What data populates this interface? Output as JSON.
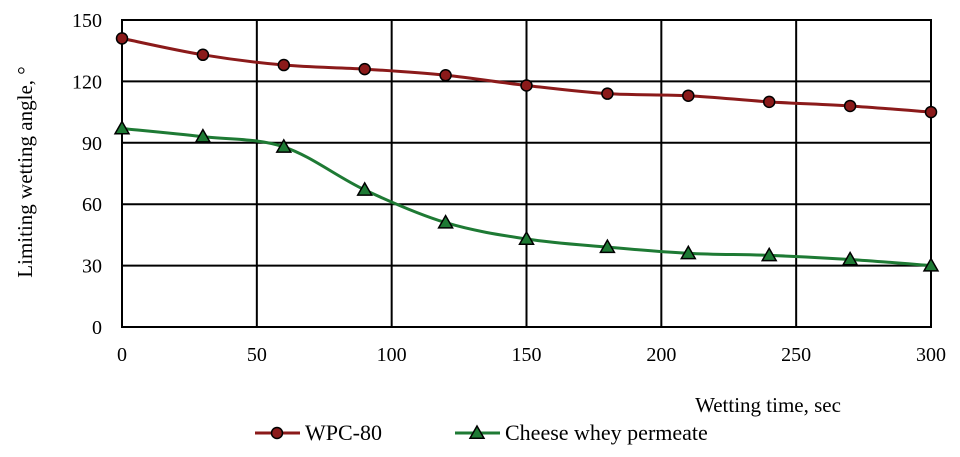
{
  "chart_data": {
    "type": "line",
    "title": "",
    "xlabel": "Wetting time, sec",
    "ylabel": "Limiting wetting angle, °",
    "xlim": [
      0,
      300
    ],
    "ylim": [
      0,
      150
    ],
    "x_ticks": [
      "0",
      "50",
      "100",
      "150",
      "200",
      "250",
      "300"
    ],
    "y_ticks": [
      "0",
      "30",
      "60",
      "90",
      "120",
      "150"
    ],
    "grid": true,
    "legend_position": "bottom",
    "series": [
      {
        "name": "WPC-80",
        "color": "#8b1a1a",
        "marker": "circle",
        "x": [
          0,
          30,
          60,
          90,
          120,
          150,
          180,
          210,
          240,
          270,
          300
        ],
        "y": [
          141,
          133,
          128,
          126,
          123,
          118,
          114,
          113,
          110,
          108,
          105
        ]
      },
      {
        "name": "Cheese whey permeate",
        "color": "#1e7a34",
        "marker": "triangle",
        "x": [
          0,
          30,
          60,
          90,
          120,
          150,
          180,
          210,
          240,
          270,
          300
        ],
        "y": [
          97,
          93,
          88,
          67,
          51,
          43,
          39,
          36,
          35,
          33,
          30
        ]
      }
    ]
  }
}
